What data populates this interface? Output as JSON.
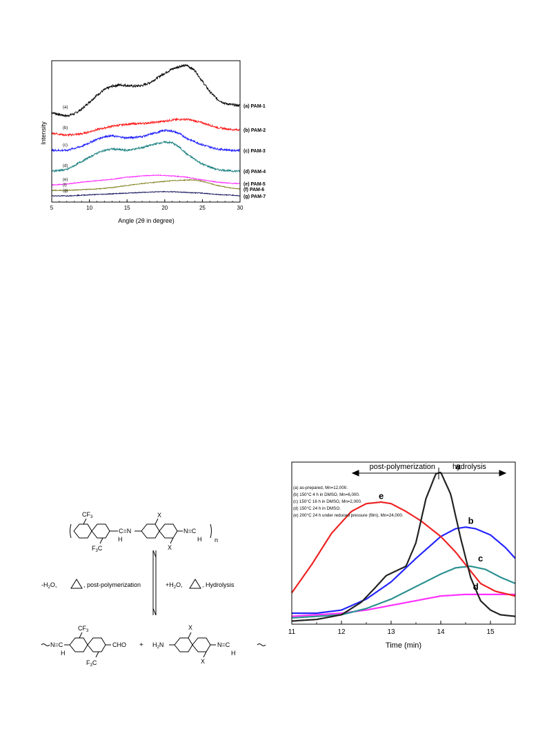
{
  "chart_data": [
    {
      "type": "line",
      "title": "",
      "xlabel": "Angle (2θ in degree)",
      "ylabel": "Intensity",
      "xlim": [
        5,
        30
      ],
      "xticks": [
        "5",
        "10",
        "15",
        "20",
        "25",
        "30"
      ],
      "grid": false,
      "legend_placement": "right",
      "series": [
        {
          "name": "(a) PAM-1",
          "short": "(a)",
          "color": "#000000",
          "x": [
            5,
            6,
            7,
            8,
            9,
            10,
            11,
            12,
            13,
            14,
            15,
            16,
            17,
            18,
            19,
            20,
            21,
            22,
            23,
            24,
            25,
            26,
            27,
            28,
            29,
            30
          ],
          "y": [
            0.55,
            0.52,
            0.5,
            0.53,
            0.6,
            0.7,
            0.8,
            0.88,
            0.93,
            0.95,
            0.94,
            0.93,
            0.94,
            0.98,
            1.05,
            1.12,
            1.18,
            1.22,
            1.23,
            1.16,
            1.0,
            0.85,
            0.74,
            0.68,
            0.66,
            0.65
          ]
        },
        {
          "name": "(b) PAM-2",
          "short": "(b)",
          "color": "#ff1a1a",
          "x": [
            5,
            7,
            9,
            11,
            13,
            15,
            17,
            19,
            21,
            22,
            23,
            25,
            27,
            29,
            30
          ],
          "y": [
            0.25,
            0.22,
            0.24,
            0.3,
            0.35,
            0.38,
            0.39,
            0.41,
            0.44,
            0.45,
            0.45,
            0.4,
            0.33,
            0.3,
            0.3
          ]
        },
        {
          "name": "(c) PAM-3",
          "short": "(c)",
          "color": "#1a1aff",
          "x": [
            5,
            7,
            9,
            11,
            12,
            13,
            15,
            17,
            19,
            20,
            21,
            22,
            23,
            25,
            27,
            29,
            30
          ],
          "y": [
            0.0,
            0.0,
            0.06,
            0.16,
            0.2,
            0.21,
            0.18,
            0.2,
            0.26,
            0.29,
            0.28,
            0.24,
            0.17,
            0.08,
            0.02,
            0.0,
            0.0
          ]
        },
        {
          "name": "(d) PAM-4",
          "short": "(d)",
          "color": "#1a8080",
          "x": [
            5,
            7,
            9,
            11,
            12,
            13,
            15,
            17,
            19,
            20,
            21,
            22,
            23,
            25,
            27,
            29,
            30
          ],
          "y": [
            -0.3,
            -0.28,
            -0.16,
            -0.04,
            0.0,
            0.02,
            0.0,
            0.04,
            0.1,
            0.12,
            0.11,
            0.04,
            -0.06,
            -0.2,
            -0.28,
            -0.3,
            -0.3
          ]
        },
        {
          "name": "(e) PAM-5",
          "short": "(e)",
          "color": "#ff1aff",
          "x": [
            5,
            7,
            9,
            11,
            13,
            15,
            17,
            19,
            21,
            23,
            25,
            27,
            29,
            30
          ],
          "y": [
            -0.5,
            -0.49,
            -0.46,
            -0.44,
            -0.42,
            -0.39,
            -0.37,
            -0.36,
            -0.37,
            -0.39,
            -0.43,
            -0.46,
            -0.48,
            -0.48
          ]
        },
        {
          "name": "(f) PAM-6",
          "short": "(f)",
          "color": "#808020",
          "x": [
            5,
            7,
            9,
            11,
            13,
            15,
            17,
            19,
            21,
            23,
            24,
            25,
            27,
            29,
            30
          ],
          "y": [
            -0.58,
            -0.58,
            -0.57,
            -0.56,
            -0.54,
            -0.51,
            -0.48,
            -0.46,
            -0.44,
            -0.43,
            -0.43,
            -0.45,
            -0.51,
            -0.55,
            -0.56
          ]
        },
        {
          "name": "(g) PAM-7",
          "short": "(g)",
          "color": "#14145a",
          "x": [
            5,
            7,
            9,
            11,
            13,
            15,
            17,
            19,
            21,
            23,
            25,
            27,
            29,
            30
          ],
          "y": [
            -0.66,
            -0.66,
            -0.65,
            -0.64,
            -0.63,
            -0.62,
            -0.61,
            -0.6,
            -0.6,
            -0.61,
            -0.62,
            -0.64,
            -0.65,
            -0.66
          ]
        }
      ]
    },
    {
      "type": "line",
      "title": "",
      "xlabel": "Time (min)",
      "ylabel": "",
      "xlim": [
        11,
        15.5
      ],
      "xticks": [
        "11",
        "12",
        "13",
        "14",
        "15"
      ],
      "grid": false,
      "legend_placement": "top-left",
      "annotations": {
        "left_arrow_label": "post-polymerization",
        "right_arrow_label": "hydrolysis"
      },
      "legend": [
        "(a) as-prepared, Mn=12,000.",
        "(b) 150°C 4 h in DMSO, Mn=6,000.",
        "(c) 150°C 16 h in DMSO, Mn=2,000.",
        "(d) 150°C 24 h in DMSO.",
        "(e) 200°C 24 h under reduced pressure (film), Mn=24,000."
      ],
      "series": [
        {
          "name": "a",
          "color": "#222222",
          "x": [
            11,
            11.5,
            12.0,
            12.4,
            12.7,
            12.9,
            13.1,
            13.3,
            13.5,
            13.7,
            13.9,
            14.0,
            14.2,
            14.4,
            14.6,
            14.8,
            15.0,
            15.2,
            15.5
          ],
          "y": [
            0.02,
            0.03,
            0.06,
            0.14,
            0.24,
            0.31,
            0.34,
            0.37,
            0.52,
            0.8,
            0.96,
            0.97,
            0.83,
            0.55,
            0.3,
            0.15,
            0.09,
            0.06,
            0.05
          ]
        },
        {
          "name": "b",
          "color": "#2424ff",
          "x": [
            11,
            11.5,
            12.0,
            12.5,
            13.0,
            13.5,
            14.0,
            14.3,
            14.5,
            14.7,
            15.0,
            15.3,
            15.5
          ],
          "y": [
            0.07,
            0.07,
            0.09,
            0.16,
            0.27,
            0.42,
            0.56,
            0.61,
            0.62,
            0.61,
            0.57,
            0.49,
            0.42
          ]
        },
        {
          "name": "c",
          "color": "#2a9090",
          "x": [
            11,
            11.5,
            12.0,
            12.5,
            13.0,
            13.5,
            14.0,
            14.3,
            14.6,
            14.9,
            15.2,
            15.5
          ],
          "y": [
            0.04,
            0.05,
            0.06,
            0.1,
            0.16,
            0.24,
            0.32,
            0.36,
            0.37,
            0.35,
            0.3,
            0.26
          ]
        },
        {
          "name": "d",
          "color": "#ff30ff",
          "x": [
            11,
            11.5,
            12.0,
            12.5,
            13.0,
            13.5,
            14.0,
            14.5,
            15.0,
            15.5
          ],
          "y": [
            0.05,
            0.06,
            0.07,
            0.09,
            0.12,
            0.15,
            0.18,
            0.19,
            0.19,
            0.19
          ]
        },
        {
          "name": "e",
          "color": "#ee2222",
          "x": [
            11,
            11.4,
            11.8,
            12.2,
            12.5,
            12.8,
            13.0,
            13.3,
            13.6,
            14.0,
            14.3,
            14.6,
            14.8,
            15.1,
            15.5
          ],
          "y": [
            0.2,
            0.38,
            0.58,
            0.72,
            0.77,
            0.78,
            0.77,
            0.72,
            0.66,
            0.56,
            0.46,
            0.34,
            0.26,
            0.21,
            0.18
          ]
        }
      ]
    }
  ],
  "scheme": {
    "cf3": "CF",
    "cf3_sub": "3",
    "f3c_sub": "3",
    "f3c_tail": "C",
    "imine": "C=N",
    "h": "H",
    "x": "X",
    "n_c": "N=C",
    "n": "n",
    "minus_h2o": "-H",
    "h2o_sub": "2",
    "h2o_tail": "O,",
    "post_label": ", post-polymerization",
    "plus_h2o": "+H",
    "hydrolysis_label": ", Hydrolysis",
    "cho": "CHO",
    "plus": "+",
    "h2n": "H",
    "h2n_sub": "2",
    "h2n_tail": "N",
    "wavy_n_c": "N=C",
    "wavy_c_n": "N=C"
  },
  "colors": {
    "axis": "#000000",
    "background": "#ffffff"
  }
}
